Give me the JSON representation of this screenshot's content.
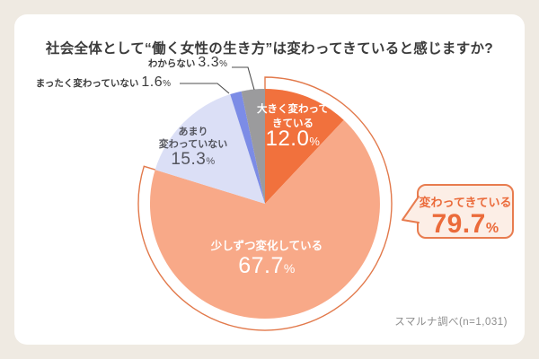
{
  "title": "社会全体として“働く女性の生き方”は変わってきていると感じますか?",
  "source": "スマルナ調べ(n=1,031)",
  "chart_data": {
    "type": "pie",
    "title": "社会全体として“働く女性の生き方”は変わってきていると感じますか?",
    "categories": [
      "大きく変わってきている",
      "少しずつ変化している",
      "あまり変わっていない",
      "まったく変わっていない",
      "わからない"
    ],
    "values": [
      12.0,
      67.7,
      15.3,
      1.6,
      3.3
    ],
    "unit": "%",
    "colors": [
      "#F1713D",
      "#F8A988",
      "#DBDFF6",
      "#7C8CE6",
      "#9B9B9D"
    ],
    "start_angle": 0,
    "direction": "clockwise",
    "legend": "none",
    "highlight": {
      "label": "変わってきている",
      "value": 79.7,
      "includes": [
        "大きく変わってきている",
        "少しずつ変化している"
      ],
      "outline_color": "#E2794B"
    },
    "source": "スマルナ調べ(n=1,031)"
  },
  "labels": {
    "slice1": {
      "line1": "大きく変わって",
      "line2": "きている",
      "value": "12.0",
      "pct": "%"
    },
    "slice2": {
      "line1": "少しずつ変化している",
      "value": "67.7",
      "pct": "%"
    },
    "slice3": {
      "line1": "あまり",
      "line2": "変わっていない",
      "value": "15.3",
      "pct": "%"
    },
    "slice4": {
      "label": "まったく変わっていない",
      "value": "1.6",
      "pct": "%"
    },
    "slice5": {
      "label": "わからない",
      "value": "3.3",
      "pct": "%"
    }
  },
  "callout": {
    "label": "変わってきている",
    "value": "79.7",
    "pct": "%"
  },
  "colors": {
    "page_background": "#EFEAE2",
    "card_background": "#FFFFFF",
    "bubble_fill": "#FCEEE6",
    "bubble_border": "#E87C4F",
    "bubble_text": "#EB6B3B",
    "leader_line": "#4E4E4E",
    "title_text": "#3B3B3B"
  }
}
